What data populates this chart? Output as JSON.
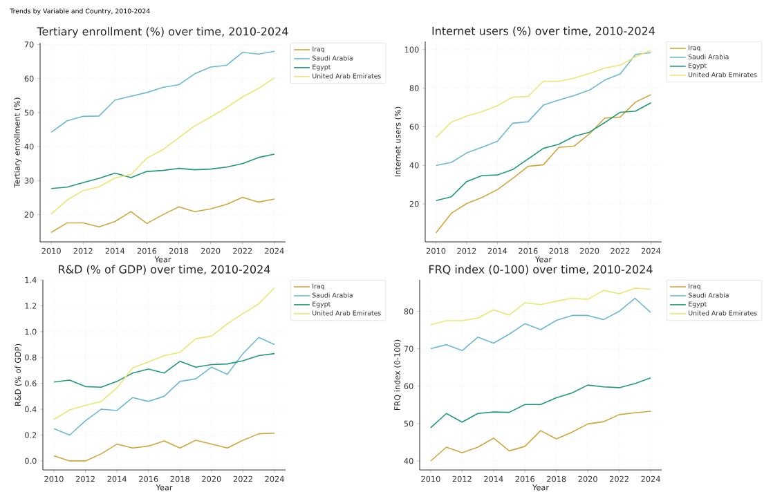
{
  "chart_data": [
    {
      "type": "line",
      "title": "Tertiary enrollment (%) over time, 2010-2024",
      "xlabel": "Year",
      "ylabel": "Tertiary enrollment (%)",
      "annotations": [
        "Trends by Variable and Country, 2010-2024"
      ],
      "x": [
        2010,
        2011,
        2012,
        2013,
        2014,
        2015,
        2016,
        2017,
        2018,
        2019,
        2020,
        2021,
        2022,
        2023,
        2024
      ],
      "series": [
        {
          "name": "Iraq",
          "color": "#d1a63a",
          "values": [
            14.8,
            17.6,
            17.6,
            16.4,
            18.0,
            20.9,
            17.4,
            20.0,
            22.3,
            20.9,
            21.7,
            23.0,
            25.1,
            23.7,
            24.6
          ]
        },
        {
          "name": "Saudi Arabia",
          "color": "#6ab8d4",
          "values": [
            44.2,
            47.6,
            48.9,
            49.0,
            53.7,
            54.8,
            55.9,
            57.4,
            58.2,
            61.4,
            63.4,
            63.9,
            67.7,
            67.2,
            68.0
          ]
        },
        {
          "name": "Egypt",
          "color": "#1f9a78",
          "values": [
            27.7,
            28.1,
            29.4,
            30.7,
            32.2,
            30.9,
            32.7,
            33.0,
            33.6,
            33.2,
            33.4,
            34.0,
            35.0,
            36.8,
            37.8
          ]
        },
        {
          "name": "United Arab Emirates",
          "color": "#ece671",
          "values": [
            20.2,
            24.3,
            27.1,
            28.2,
            30.8,
            31.8,
            36.6,
            39.1,
            42.6,
            46.1,
            48.7,
            51.5,
            54.6,
            57.1,
            60.2
          ]
        }
      ],
      "xlim": [
        2009.3,
        2024.7
      ],
      "xticks": [
        2010,
        2012,
        2014,
        2016,
        2018,
        2020,
        2022,
        2024
      ],
      "ylim": [
        12,
        70.5
      ],
      "yticks": [
        20,
        30,
        40,
        50,
        60,
        70
      ],
      "grid": true,
      "legend": "right",
      "line_style": "solid"
    },
    {
      "type": "line",
      "title": "Internet users (%) over time, 2010-2024",
      "xlabel": "Year",
      "ylabel": "Internet users (%)",
      "x": [
        2010,
        2011,
        2012,
        2013,
        2014,
        2015,
        2016,
        2017,
        2018,
        2019,
        2020,
        2021,
        2022,
        2023,
        2024
      ],
      "series": [
        {
          "name": "Iraq",
          "color": "#d1a63a",
          "values": [
            5.0,
            15.1,
            20.2,
            23.3,
            27.4,
            33.2,
            39.5,
            40.3,
            49.3,
            50.0,
            56.3,
            64.5,
            65.0,
            72.8,
            76.6
          ]
        },
        {
          "name": "Saudi Arabia",
          "color": "#6ab8d4",
          "values": [
            39.9,
            41.5,
            46.4,
            49.4,
            52.4,
            61.8,
            62.6,
            71.2,
            73.8,
            76.2,
            79.0,
            84.2,
            87.4,
            97.5,
            98.4
          ]
        },
        {
          "name": "Egypt",
          "color": "#1f9a78",
          "values": [
            21.7,
            23.7,
            31.6,
            34.7,
            35.0,
            37.8,
            43.3,
            48.8,
            50.9,
            55.0,
            57.2,
            62.2,
            67.5,
            68.1,
            72.4
          ]
        },
        {
          "name": "United Arab Emirates",
          "color": "#ece671",
          "values": [
            54.4,
            62.4,
            65.5,
            67.8,
            70.9,
            75.3,
            75.7,
            83.6,
            83.5,
            85.2,
            87.6,
            90.4,
            91.9,
            96.3,
            99.6
          ]
        }
      ],
      "xlim": [
        2009.3,
        2024.7
      ],
      "xticks": [
        2010,
        2012,
        2014,
        2016,
        2018,
        2020,
        2022,
        2024
      ],
      "ylim": [
        0.3,
        104.2
      ],
      "yticks": [
        20,
        40,
        60,
        80,
        100
      ],
      "grid": true,
      "legend": "right",
      "line_style": "solid"
    },
    {
      "type": "line",
      "title": "R&D (% of GDP) over time, 2010-2024",
      "xlabel": "Year",
      "ylabel": "R&D (% of GDP)",
      "x": [
        2010,
        2011,
        2012,
        2013,
        2014,
        2015,
        2016,
        2017,
        2018,
        2019,
        2020,
        2021,
        2022,
        2023,
        2024
      ],
      "series": [
        {
          "name": "Iraq",
          "color": "#d1a63a",
          "values": [
            0.04,
            0.0,
            0.0,
            0.055,
            0.13,
            0.1,
            0.115,
            0.155,
            0.1,
            0.16,
            0.13,
            0.1,
            0.16,
            0.21,
            0.215
          ]
        },
        {
          "name": "Saudi Arabia",
          "color": "#6ab8d4",
          "values": [
            0.25,
            0.2,
            0.31,
            0.4,
            0.39,
            0.49,
            0.46,
            0.5,
            0.615,
            0.635,
            0.725,
            0.67,
            0.83,
            0.955,
            0.9
          ]
        },
        {
          "name": "Egypt",
          "color": "#1f9a78",
          "values": [
            0.61,
            0.625,
            0.575,
            0.57,
            0.615,
            0.68,
            0.71,
            0.68,
            0.77,
            0.725,
            0.745,
            0.75,
            0.775,
            0.815,
            0.83
          ]
        },
        {
          "name": "United Arab Emirates",
          "color": "#ece671",
          "values": [
            0.32,
            0.395,
            0.43,
            0.46,
            0.565,
            0.72,
            0.765,
            0.815,
            0.84,
            0.945,
            0.965,
            1.06,
            1.14,
            1.215,
            1.34
          ]
        }
      ],
      "xlim": [
        2009.3,
        2024.7
      ],
      "xticks": [
        2010,
        2012,
        2014,
        2016,
        2018,
        2020,
        2022,
        2024
      ],
      "ylim": [
        -0.07,
        1.4
      ],
      "yticks": [
        {
          "value": 0,
          "label": "0.0"
        },
        {
          "value": 0.2,
          "label": "0.2"
        },
        {
          "value": 0.4,
          "label": "0.4"
        },
        {
          "value": 0.6,
          "label": "0.6"
        },
        {
          "value": 0.8,
          "label": "0.8"
        },
        {
          "value": 1.0,
          "label": "1.0"
        },
        {
          "value": 1.2,
          "label": "1.2"
        },
        {
          "value": 1.4,
          "label": "1.4"
        }
      ],
      "grid": true,
      "legend": "right",
      "line_style": "solid"
    },
    {
      "type": "line",
      "title": "FRQ index (0-100) over time, 2010-2024",
      "xlabel": "Year",
      "ylabel": "FRQ index (0-100)",
      "x": [
        2010,
        2011,
        2012,
        2013,
        2014,
        2015,
        2016,
        2017,
        2018,
        2019,
        2020,
        2021,
        2022,
        2023,
        2024
      ],
      "series": [
        {
          "name": "Iraq",
          "color": "#d1a63a",
          "values": [
            40.0,
            43.7,
            42.2,
            43.7,
            46.1,
            42.7,
            43.9,
            48.1,
            45.9,
            47.7,
            49.9,
            50.5,
            52.4,
            52.9,
            53.3
          ]
        },
        {
          "name": "Saudi Arabia",
          "color": "#6ab8d4",
          "values": [
            70.0,
            71.1,
            69.5,
            73.1,
            71.5,
            73.9,
            76.7,
            75.1,
            77.6,
            78.9,
            78.9,
            77.8,
            80.0,
            83.5,
            79.7
          ]
        },
        {
          "name": "Egypt",
          "color": "#1f9a78",
          "values": [
            48.9,
            52.7,
            50.4,
            52.7,
            53.1,
            53.0,
            55.1,
            55.1,
            56.9,
            58.2,
            60.3,
            59.8,
            59.6,
            60.7,
            62.2
          ]
        },
        {
          "name": "United Arab Emirates",
          "color": "#ece671",
          "values": [
            76.4,
            77.5,
            77.5,
            78.2,
            80.4,
            79.0,
            82.3,
            81.8,
            82.7,
            83.5,
            83.2,
            85.6,
            84.7,
            86.2,
            85.9
          ]
        }
      ],
      "xlim": [
        2009.3,
        2024.7
      ],
      "xticks": [
        2010,
        2012,
        2014,
        2016,
        2018,
        2020,
        2022,
        2024
      ],
      "ylim": [
        37.6,
        88.4
      ],
      "yticks": [
        40,
        50,
        60,
        70,
        80
      ],
      "grid": true,
      "legend": "right",
      "line_style": "solid"
    }
  ]
}
